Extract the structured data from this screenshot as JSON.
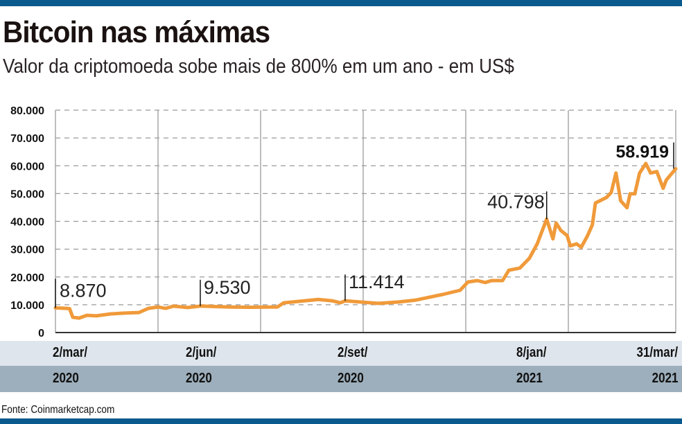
{
  "header": {
    "title": "Bitcoin nas máximas",
    "subtitle": "Valor da criptomoeda sobe mais de 800% em um ano - em US$"
  },
  "footer": {
    "source": "Fonte: Coinmarketcap.com"
  },
  "colors": {
    "line": "#f09a3a",
    "bars": "#0b5a8e",
    "band_light": "#dfe5ec",
    "band_dark": "#9dafbc"
  },
  "chart_data": {
    "type": "line",
    "title": "Bitcoin nas máximas",
    "subtitle": "Valor da criptomoeda sobe mais de 800% em um ano - em US$",
    "xlim": [
      "2020-03-02",
      "2021-03-31"
    ],
    "ylim": [
      0,
      80000
    ],
    "grid": true,
    "y_ticks": [
      0,
      10000,
      20000,
      30000,
      40000,
      50000,
      60000,
      70000,
      80000
    ],
    "y_tick_labels": [
      "0",
      "10.000",
      "20.000",
      "30.000",
      "40.000",
      "50.000",
      "60.000",
      "70.000",
      "80.000"
    ],
    "x_ticks": [
      {
        "date": "2020-03-02",
        "line1": "2/mar/",
        "line2": "2020"
      },
      {
        "date": "2020-06-02",
        "line1": "2/jun/",
        "line2": "2020"
      },
      {
        "date": "2020-09-02",
        "line1": "2/set/",
        "line2": "2020"
      },
      {
        "date": "2021-01-08",
        "line1": "8/jan/",
        "line2": "2021"
      },
      {
        "date": "2021-03-31",
        "line1": "31/mar/",
        "line2": "2021"
      }
    ],
    "annotations": [
      {
        "date": "2020-03-02",
        "value": 8870,
        "label": "8.870"
      },
      {
        "date": "2020-06-02",
        "value": 9530,
        "label": "9.530"
      },
      {
        "date": "2020-09-02",
        "value": 11414,
        "label": "11.414"
      },
      {
        "date": "2021-01-08",
        "value": 40798,
        "label": "40.798"
      },
      {
        "date": "2021-03-31",
        "value": 58919,
        "label": "58.919",
        "bold": true
      }
    ],
    "series": [
      {
        "x": [
          "2020-03-02",
          "2020-03-09",
          "2020-03-11",
          "2020-03-13",
          "2020-03-17",
          "2020-03-22",
          "2020-03-28",
          "2020-04-06",
          "2020-04-15",
          "2020-04-24",
          "2020-04-30",
          "2020-05-06",
          "2020-05-11",
          "2020-05-16",
          "2020-05-25",
          "2020-06-02",
          "2020-06-20",
          "2020-07-03",
          "2020-07-21",
          "2020-07-25",
          "2020-08-03",
          "2020-08-16",
          "2020-08-25",
          "2020-08-30",
          "2020-09-02",
          "2020-09-23",
          "2020-10-06",
          "2020-10-17",
          "2020-11-03",
          "2020-11-14",
          "2020-11-19",
          "2020-11-25",
          "2020-11-30",
          "2020-12-04",
          "2020-12-11",
          "2020-12-15",
          "2020-12-22",
          "2020-12-28",
          "2021-01-02",
          "2021-01-08",
          "2021-01-12",
          "2021-01-14",
          "2021-01-17",
          "2021-01-21",
          "2021-01-23",
          "2021-01-27",
          "2021-01-30",
          "2021-02-03",
          "2021-02-06",
          "2021-02-08",
          "2021-02-15",
          "2021-02-18",
          "2021-02-21",
          "2021-02-24",
          "2021-02-28",
          "2021-03-02",
          "2021-03-05",
          "2021-03-08",
          "2021-03-12",
          "2021-03-15",
          "2021-03-19",
          "2021-03-23",
          "2021-03-25",
          "2021-03-31"
        ],
        "y": [
          8870,
          8700,
          8600,
          5500,
          5200,
          6200,
          6000,
          6700,
          7000,
          7200,
          8700,
          9200,
          8700,
          9500,
          9000,
          9530,
          9200,
          9100,
          9200,
          10700,
          11200,
          11900,
          11400,
          10700,
          11414,
          10500,
          11000,
          11700,
          13700,
          15200,
          18200,
          18700,
          18000,
          18700,
          18700,
          22400,
          23200,
          26700,
          31900,
          40798,
          33700,
          39400,
          36700,
          34900,
          31200,
          31900,
          30700,
          34900,
          38700,
          46600,
          48600,
          50400,
          57400,
          47400,
          44900,
          49900,
          49900,
          57400,
          60800,
          57400,
          57900,
          51900,
          54900,
          58919
        ]
      }
    ]
  }
}
